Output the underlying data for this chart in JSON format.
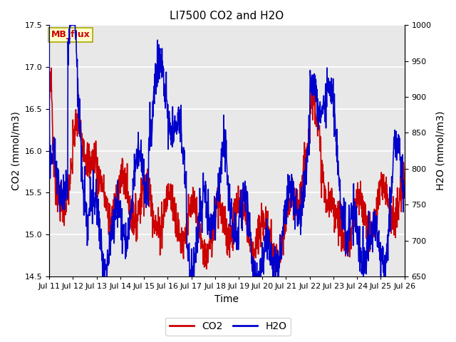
{
  "title": "LI7500 CO2 and H2O",
  "xlabel": "Time",
  "ylabel_left": "CO2 (mmol/m3)",
  "ylabel_right": "H2O (mmol/m3)",
  "ylim_left": [
    14.5,
    17.5
  ],
  "ylim_right": [
    650,
    1000
  ],
  "x_tick_labels": [
    "Jul 11",
    "Jul 12",
    "Jul 13",
    "Jul 14",
    "Jul 15",
    "Jul 16",
    "Jul 17",
    "Jul 18",
    "Jul 19",
    "Jul 20",
    "Jul 21",
    "Jul 22",
    "Jul 23",
    "Jul 24",
    "Jul 25",
    "Jul 26"
  ],
  "co2_color": "#cc0000",
  "h2o_color": "#0000cc",
  "legend_label_co2": "CO2",
  "legend_label_h2o": "H2O",
  "mb_flux_label": "MB_flux",
  "background_color": "#ffffff",
  "plot_bg_color": "#e8e8e8",
  "grid_color": "#ffffff",
  "title_fontsize": 11,
  "axis_label_fontsize": 10,
  "tick_fontsize": 8,
  "legend_fontsize": 10,
  "line_width": 1.2,
  "figsize": [
    6.4,
    4.8
  ],
  "dpi": 100
}
